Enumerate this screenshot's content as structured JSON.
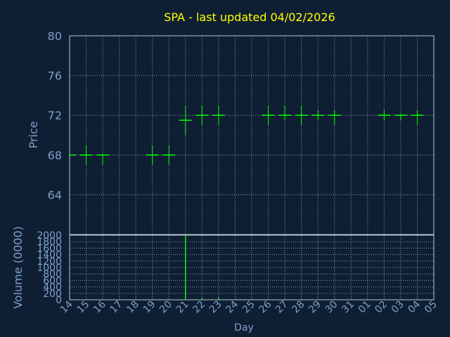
{
  "colors": {
    "background": "#0f1f33",
    "title": "#ffff00",
    "axis_text": "#7f9fc7",
    "grid": "#b8c4d4",
    "price_marks": "#00ff00",
    "volume_bars": "#00ff00"
  },
  "chart_data": {
    "title": "SPA - last updated 04/02/2026",
    "xlabel": "Day",
    "x_ticks": [
      "14",
      "15",
      "16",
      "17",
      "18",
      "19",
      "20",
      "21",
      "22",
      "23",
      "24",
      "25",
      "26",
      "27",
      "28",
      "29",
      "30",
      "31",
      "01",
      "02",
      "03",
      "04",
      "05"
    ],
    "grid": true,
    "price_panel": {
      "type": "ohlc",
      "ylabel": "Price",
      "ylim": [
        60,
        80
      ],
      "y_ticks": [
        64,
        68,
        72,
        76,
        80
      ],
      "points": [
        {
          "x": "14",
          "high": 68,
          "low": 68,
          "open": 68,
          "close": 68
        },
        {
          "x": "15",
          "high": 69,
          "low": 67,
          "open": 68,
          "close": 68
        },
        {
          "x": "16",
          "high": 68,
          "low": 67,
          "open": 68,
          "close": 68
        },
        {
          "x": "19",
          "high": 69,
          "low": 67,
          "open": 68,
          "close": 68
        },
        {
          "x": "20",
          "high": 69,
          "low": 67,
          "open": 68,
          "close": 68
        },
        {
          "x": "21",
          "high": 73,
          "low": 70,
          "open": 71.5,
          "close": 71.5
        },
        {
          "x": "22",
          "high": 73,
          "low": 71,
          "open": 72,
          "close": 72
        },
        {
          "x": "23",
          "high": 73,
          "low": 71,
          "open": 72,
          "close": 72
        },
        {
          "x": "26",
          "high": 73,
          "low": 71,
          "open": 72,
          "close": 72
        },
        {
          "x": "27",
          "high": 73,
          "low": 71.5,
          "open": 72,
          "close": 72
        },
        {
          "x": "28",
          "high": 73,
          "low": 71,
          "open": 72,
          "close": 72
        },
        {
          "x": "29",
          "high": 72.5,
          "low": 71.5,
          "open": 72,
          "close": 72
        },
        {
          "x": "30",
          "high": 72.5,
          "low": 71,
          "open": 72,
          "close": 72
        },
        {
          "x": "02",
          "high": 72.5,
          "low": 71.5,
          "open": 72,
          "close": 72
        },
        {
          "x": "03",
          "high": 72.2,
          "low": 71.5,
          "open": 72,
          "close": 72
        },
        {
          "x": "04",
          "high": 72.5,
          "low": 71,
          "open": 72,
          "close": 72
        }
      ]
    },
    "volume_panel": {
      "type": "bar",
      "ylabel": "Volume (0000)",
      "ylim": [
        0,
        2000
      ],
      "y_ticks": [
        0,
        200,
        400,
        600,
        800,
        1000,
        1200,
        1400,
        1600,
        1800,
        2000
      ],
      "bars": [
        {
          "x": "21",
          "value": 2000
        },
        {
          "x": "22",
          "value": 60
        },
        {
          "x": "23",
          "value": 70
        }
      ]
    }
  }
}
